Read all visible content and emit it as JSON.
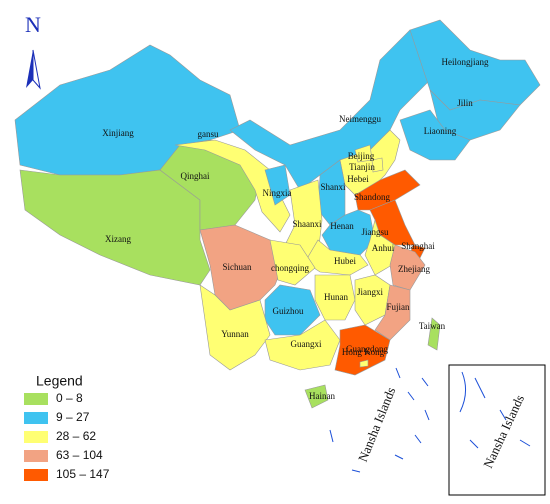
{
  "north_label": "N",
  "legend": {
    "title": "Legend",
    "items": [
      {
        "label": "0 – 8",
        "color": "#a8e05f"
      },
      {
        "label": "9 – 27",
        "color": "#3fc3f0"
      },
      {
        "label": "28 – 62",
        "color": "#ffff73"
      },
      {
        "label": "63 – 104",
        "color": "#f2a383"
      },
      {
        "label": "105 – 147",
        "color": "#ff5a00"
      }
    ]
  },
  "provinces": [
    {
      "name": "Xinjiang",
      "class": 1
    },
    {
      "name": "Xizang",
      "class": 0
    },
    {
      "name": "Qinghai",
      "class": 0
    },
    {
      "name": "gansu",
      "class": 2
    },
    {
      "name": "Neimenggu",
      "class": 1
    },
    {
      "name": "Heilongjiang",
      "class": 1
    },
    {
      "name": "Jilin",
      "class": 1
    },
    {
      "name": "Liaoning",
      "class": 1
    },
    {
      "name": "Hebei",
      "class": 2
    },
    {
      "name": "Beijing",
      "class": 2
    },
    {
      "name": "Tianjin",
      "class": 2
    },
    {
      "name": "Shanxi",
      "class": 1
    },
    {
      "name": "Ningxia",
      "class": 1
    },
    {
      "name": "Shaanxi",
      "class": 2
    },
    {
      "name": "Shandong",
      "class": 4
    },
    {
      "name": "Henan",
      "class": 1
    },
    {
      "name": "Jiangsu",
      "class": 4
    },
    {
      "name": "Shanghai",
      "class": 4
    },
    {
      "name": "Anhui",
      "class": 2
    },
    {
      "name": "Zhejiang",
      "class": 3
    },
    {
      "name": "Hubei",
      "class": 2
    },
    {
      "name": "Sichuan",
      "class": 3
    },
    {
      "name": "chongqing",
      "class": 2
    },
    {
      "name": "Guizhou",
      "class": 1
    },
    {
      "name": "Yunnan",
      "class": 2
    },
    {
      "name": "Hunan",
      "class": 2
    },
    {
      "name": "Jiangxi",
      "class": 2
    },
    {
      "name": "Fujian",
      "class": 3
    },
    {
      "name": "Guangxi",
      "class": 2
    },
    {
      "name": "Guangdong",
      "class": 4
    },
    {
      "name": "Hong Kong",
      "class": 2
    },
    {
      "name": "Hainan",
      "class": 0
    },
    {
      "name": "Taiwan",
      "class": 0
    }
  ],
  "nansha_main": "Nansha Islands",
  "nansha_inset": "Nansha Islands"
}
